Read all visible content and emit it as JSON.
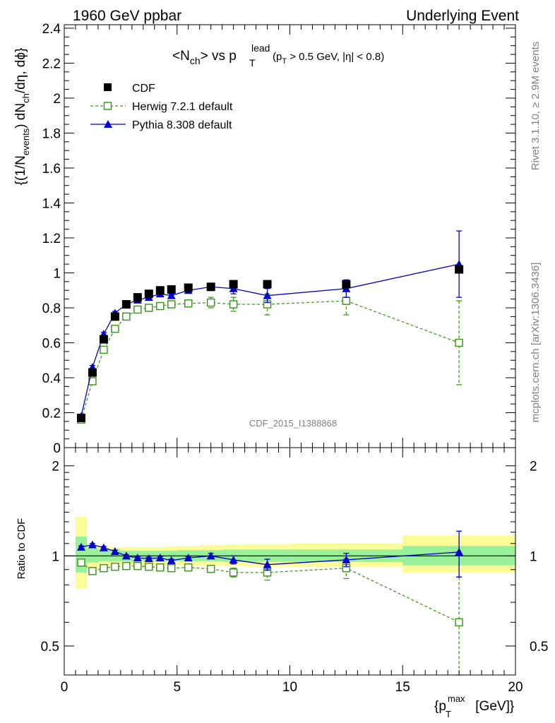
{
  "header": {
    "left": "1960 GeV ppbar",
    "right": "Underlying Event"
  },
  "side_labels": {
    "rivet": "Rivet 3.1.10, ≥ 2.9M events",
    "mcplots": "mcplots.cern.ch [arXiv:1306.3436]"
  },
  "watermark": "CDF_2015_I1388868",
  "chart_data": [
    {
      "type": "scatter",
      "title": {
        "part1": "<N",
        "sub1": "ch",
        "part2": "> vs p",
        "sup2": "lead",
        "sub2": "T",
        "part3": "(p",
        "sub3": "T",
        "part4": " > 0.5 GeV, |η| < 0.8)"
      },
      "ylabel": {
        "part1": "{(1/N",
        "sub1": "events",
        "part2": ") dN",
        "sub2": "ch",
        "part3": "/dη, dϕ}"
      },
      "xlim": [
        0,
        20
      ],
      "ylim": [
        0,
        2.42
      ],
      "yticks": [
        "0",
        "0.2",
        "0.4",
        "0.6",
        "0.8",
        "1",
        "1.2",
        "1.4",
        "1.6",
        "1.8",
        "2",
        "2.2",
        "2.4"
      ],
      "grid": false,
      "legend": {
        "position": "top-left"
      },
      "series": [
        {
          "name": "CDF",
          "style": "data",
          "color": "#000000",
          "x": [
            0.75,
            1.25,
            1.75,
            2.25,
            2.75,
            3.25,
            3.75,
            4.25,
            4.75,
            5.5,
            6.5,
            7.5,
            9.0,
            12.5,
            17.5
          ],
          "y": [
            0.17,
            0.43,
            0.62,
            0.75,
            0.82,
            0.86,
            0.88,
            0.9,
            0.905,
            0.915,
            0.92,
            0.935,
            0.935,
            0.935,
            1.02
          ],
          "err": [
            0,
            0,
            0,
            0,
            0,
            0,
            0,
            0,
            0,
            0,
            0,
            0,
            0,
            0,
            0
          ]
        },
        {
          "name": "Herwig 7.2.1 default",
          "style": "dashed-open-square",
          "color": "#3d9a1c",
          "x": [
            0.75,
            1.25,
            1.75,
            2.25,
            2.75,
            3.25,
            3.75,
            4.25,
            4.75,
            5.5,
            6.5,
            7.5,
            9.0,
            12.5,
            17.5
          ],
          "y": [
            0.16,
            0.38,
            0.56,
            0.68,
            0.75,
            0.79,
            0.8,
            0.81,
            0.82,
            0.825,
            0.83,
            0.82,
            0.82,
            0.84,
            0.6
          ],
          "err": [
            0.01,
            0.01,
            0.01,
            0.01,
            0.01,
            0.01,
            0.01,
            0.01,
            0.01,
            0.01,
            0.03,
            0.04,
            0.06,
            0.08,
            0.24
          ]
        },
        {
          "name": "Pythia 8.308 default",
          "style": "solid-filled-triangle",
          "color": "#0000cc",
          "x": [
            0.75,
            1.25,
            1.75,
            2.25,
            2.75,
            3.25,
            3.75,
            4.25,
            4.75,
            5.5,
            6.5,
            7.5,
            9.0,
            12.5,
            17.5
          ],
          "y": [
            0.18,
            0.46,
            0.65,
            0.77,
            0.82,
            0.845,
            0.86,
            0.88,
            0.87,
            0.9,
            0.92,
            0.91,
            0.87,
            0.91,
            1.05
          ],
          "err": [
            0.01,
            0.01,
            0.01,
            0.01,
            0.01,
            0.01,
            0.01,
            0.01,
            0.01,
            0.01,
            0.02,
            0.03,
            0.04,
            0.05,
            0.19
          ]
        }
      ]
    },
    {
      "type": "scatter",
      "ylabel": "Ratio to CDF",
      "xlabel": {
        "part1": "{p",
        "sub1": "T",
        "sup1": "max",
        "part2": " [GeV]}"
      },
      "xlim": [
        0,
        20
      ],
      "ylim": [
        0.4,
        2.3
      ],
      "xticks": [
        "0",
        "5",
        "10",
        "15",
        "20"
      ],
      "yticks": [
        "0.5",
        "1",
        "2"
      ],
      "grid": false,
      "bands": {
        "inner_color": "#98f098",
        "outer_color": "#fbfb98",
        "bins": [
          {
            "x0": 0.5,
            "x1": 1.0,
            "inner": [
              0.88,
              1.16
            ],
            "outer": [
              0.78,
              1.35
            ]
          },
          {
            "x0": 1.0,
            "x1": 1.5,
            "inner": [
              0.95,
              1.06
            ],
            "outer": [
              0.91,
              1.09
            ]
          },
          {
            "x0": 1.5,
            "x1": 2.0,
            "inner": [
              0.96,
              1.05
            ],
            "outer": [
              0.92,
              1.08
            ]
          },
          {
            "x0": 2.0,
            "x1": 2.5,
            "inner": [
              0.96,
              1.05
            ],
            "outer": [
              0.93,
              1.07
            ]
          },
          {
            "x0": 2.5,
            "x1": 3.0,
            "inner": [
              0.96,
              1.04
            ],
            "outer": [
              0.93,
              1.07
            ]
          },
          {
            "x0": 3.0,
            "x1": 3.5,
            "inner": [
              0.96,
              1.04
            ],
            "outer": [
              0.93,
              1.07
            ]
          },
          {
            "x0": 3.5,
            "x1": 4.0,
            "inner": [
              0.96,
              1.04
            ],
            "outer": [
              0.93,
              1.07
            ]
          },
          {
            "x0": 4.0,
            "x1": 4.5,
            "inner": [
              0.96,
              1.04
            ],
            "outer": [
              0.93,
              1.07
            ]
          },
          {
            "x0": 4.5,
            "x1": 5.0,
            "inner": [
              0.96,
              1.04
            ],
            "outer": [
              0.93,
              1.075
            ]
          },
          {
            "x0": 5.0,
            "x1": 6.0,
            "inner": [
              0.96,
              1.045
            ],
            "outer": [
              0.93,
              1.08
            ]
          },
          {
            "x0": 6.0,
            "x1": 7.0,
            "inner": [
              0.96,
              1.045
            ],
            "outer": [
              0.93,
              1.085
            ]
          },
          {
            "x0": 7.0,
            "x1": 8.0,
            "inner": [
              0.955,
              1.05
            ],
            "outer": [
              0.925,
              1.09
            ]
          },
          {
            "x0": 8.0,
            "x1": 10.0,
            "inner": [
              0.955,
              1.05
            ],
            "outer": [
              0.92,
              1.095
            ]
          },
          {
            "x0": 10.0,
            "x1": 15.0,
            "inner": [
              0.955,
              1.05
            ],
            "outer": [
              0.92,
              1.1
            ]
          },
          {
            "x0": 15.0,
            "x1": 20.0,
            "inner": [
              0.93,
              1.08
            ],
            "outer": [
              0.88,
              1.17
            ]
          }
        ]
      },
      "series": [
        {
          "name": "Herwig 7.2.1 default",
          "style": "dashed-open-square",
          "color": "#3d9a1c",
          "x": [
            0.75,
            1.25,
            1.75,
            2.25,
            2.75,
            3.25,
            3.75,
            4.25,
            4.75,
            5.5,
            6.5,
            7.5,
            9.0,
            12.5,
            17.5
          ],
          "y": [
            0.95,
            0.89,
            0.91,
            0.92,
            0.925,
            0.925,
            0.92,
            0.915,
            0.91,
            0.915,
            0.905,
            0.88,
            0.88,
            0.91,
            0.6
          ],
          "err": [
            0.01,
            0.01,
            0.01,
            0.01,
            0.01,
            0.01,
            0.01,
            0.01,
            0.01,
            0.01,
            0.02,
            0.03,
            0.05,
            0.07,
            0.25
          ]
        },
        {
          "name": "Pythia 8.308 default",
          "style": "solid-filled-triangle",
          "color": "#0000cc",
          "x": [
            0.75,
            1.25,
            1.75,
            2.25,
            2.75,
            3.25,
            3.75,
            4.25,
            4.75,
            5.5,
            6.5,
            7.5,
            9.0,
            12.5,
            17.5
          ],
          "y": [
            1.07,
            1.09,
            1.065,
            1.035,
            1.0,
            0.985,
            0.98,
            0.985,
            0.965,
            0.985,
            1.0,
            0.97,
            0.935,
            0.97,
            1.03
          ],
          "err": [
            0.01,
            0.01,
            0.01,
            0.01,
            0.01,
            0.01,
            0.01,
            0.01,
            0.01,
            0.01,
            0.02,
            0.03,
            0.04,
            0.05,
            0.18
          ]
        }
      ]
    }
  ]
}
